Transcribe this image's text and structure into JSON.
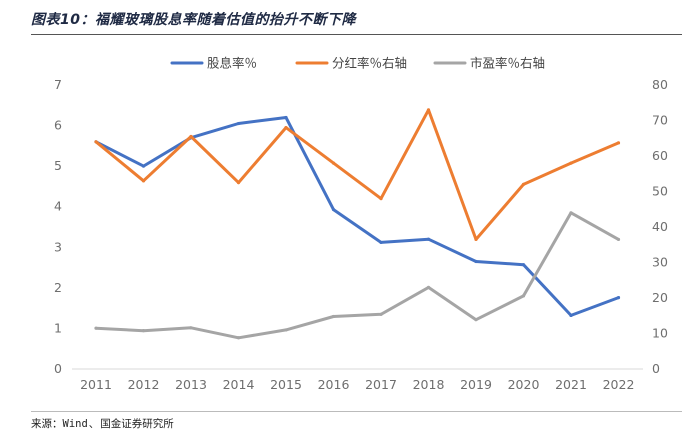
{
  "figure": {
    "title": "图表10：福耀玻璃股息率随着估值的抬升不断下降",
    "source_label": "来源：",
    "source_items": [
      "Wind",
      "国金证券研究所"
    ],
    "source_separator": "、"
  },
  "chart_data": {
    "type": "line",
    "categories": [
      "2011",
      "2012",
      "2013",
      "2014",
      "2015",
      "2016",
      "2017",
      "2018",
      "2019",
      "2020",
      "2021",
      "2022"
    ],
    "series": [
      {
        "name": "股息率％",
        "axis": "left",
        "color": "#4472C4",
        "values": [
          5.6,
          5.0,
          5.7,
          6.05,
          6.2,
          3.93,
          3.12,
          3.2,
          2.65,
          2.57,
          1.32,
          1.76
        ]
      },
      {
        "name": "分红率％右轴",
        "axis": "right",
        "color": "#ED7D31",
        "values": [
          64,
          53,
          65.5,
          52.5,
          68,
          58,
          48,
          73,
          36.5,
          52,
          58,
          63.7
        ]
      },
      {
        "name": "市盈率％右轴",
        "axis": "right",
        "color": "#A5A5A5",
        "values": [
          11.5,
          10.8,
          11.6,
          8.8,
          11,
          14.8,
          15.4,
          23,
          13.9,
          20.6,
          44,
          36.5
        ]
      }
    ],
    "y_left": {
      "min": 0,
      "max": 7,
      "ticks": [
        "0",
        "1",
        "2",
        "3",
        "4",
        "5",
        "6",
        "7"
      ]
    },
    "y_right": {
      "min": 0,
      "max": 80,
      "ticks": [
        "0",
        "10",
        "20",
        "30",
        "40",
        "50",
        "60",
        "70",
        "80"
      ]
    },
    "legend_position": "top-center",
    "grid": false
  }
}
